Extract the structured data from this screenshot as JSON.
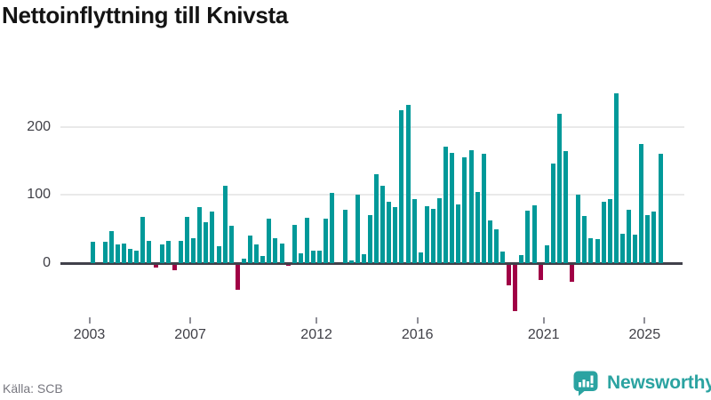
{
  "header": {
    "title": "Nettoinflyttning till Knivsta"
  },
  "footer": {
    "source": "Källa: SCB",
    "brand": "Newsworthy"
  },
  "chart_data": {
    "type": "bar",
    "title": "Nettoinflyttning till Knivsta",
    "x_unit": "quarter",
    "frequency": "quarterly",
    "start_period": "2003 Q1",
    "end_period": "2025 Q3",
    "xlabel": "",
    "ylabel": "",
    "grid": "horizontal",
    "legend": "none",
    "y_ticks": [
      0,
      100,
      200
    ],
    "ylim": [
      -80,
      270
    ],
    "colors": {
      "positive": "#009999",
      "negative": "#a00045"
    },
    "x_ticks": [
      {
        "label": "2003",
        "quarter_index": 0
      },
      {
        "label": "2007",
        "quarter_index": 16
      },
      {
        "label": "2012",
        "quarter_index": 36
      },
      {
        "label": "2016",
        "quarter_index": 52
      },
      {
        "label": "2021",
        "quarter_index": 72
      },
      {
        "label": "2025",
        "quarter_index": 88
      }
    ],
    "values": [
      31,
      0,
      31,
      47,
      27,
      29,
      21,
      18,
      68,
      33,
      -7,
      28,
      32,
      -10,
      33,
      68,
      37,
      82,
      60,
      76,
      25,
      113,
      55,
      -39,
      7,
      40,
      28,
      10,
      65,
      37,
      29,
      -3,
      56,
      14,
      66,
      18,
      18,
      65,
      103,
      0,
      78,
      4,
      100,
      13,
      71,
      130,
      114,
      90,
      82,
      224,
      232,
      94,
      15,
      84,
      79,
      95,
      171,
      162,
      86,
      155,
      165,
      104,
      160,
      63,
      50,
      17,
      -32,
      -71,
      12,
      77,
      85,
      -25,
      26,
      146,
      219,
      164,
      -28,
      100,
      69,
      37,
      35,
      90,
      94,
      249,
      43,
      78,
      42,
      175,
      71,
      75,
      161
    ]
  }
}
